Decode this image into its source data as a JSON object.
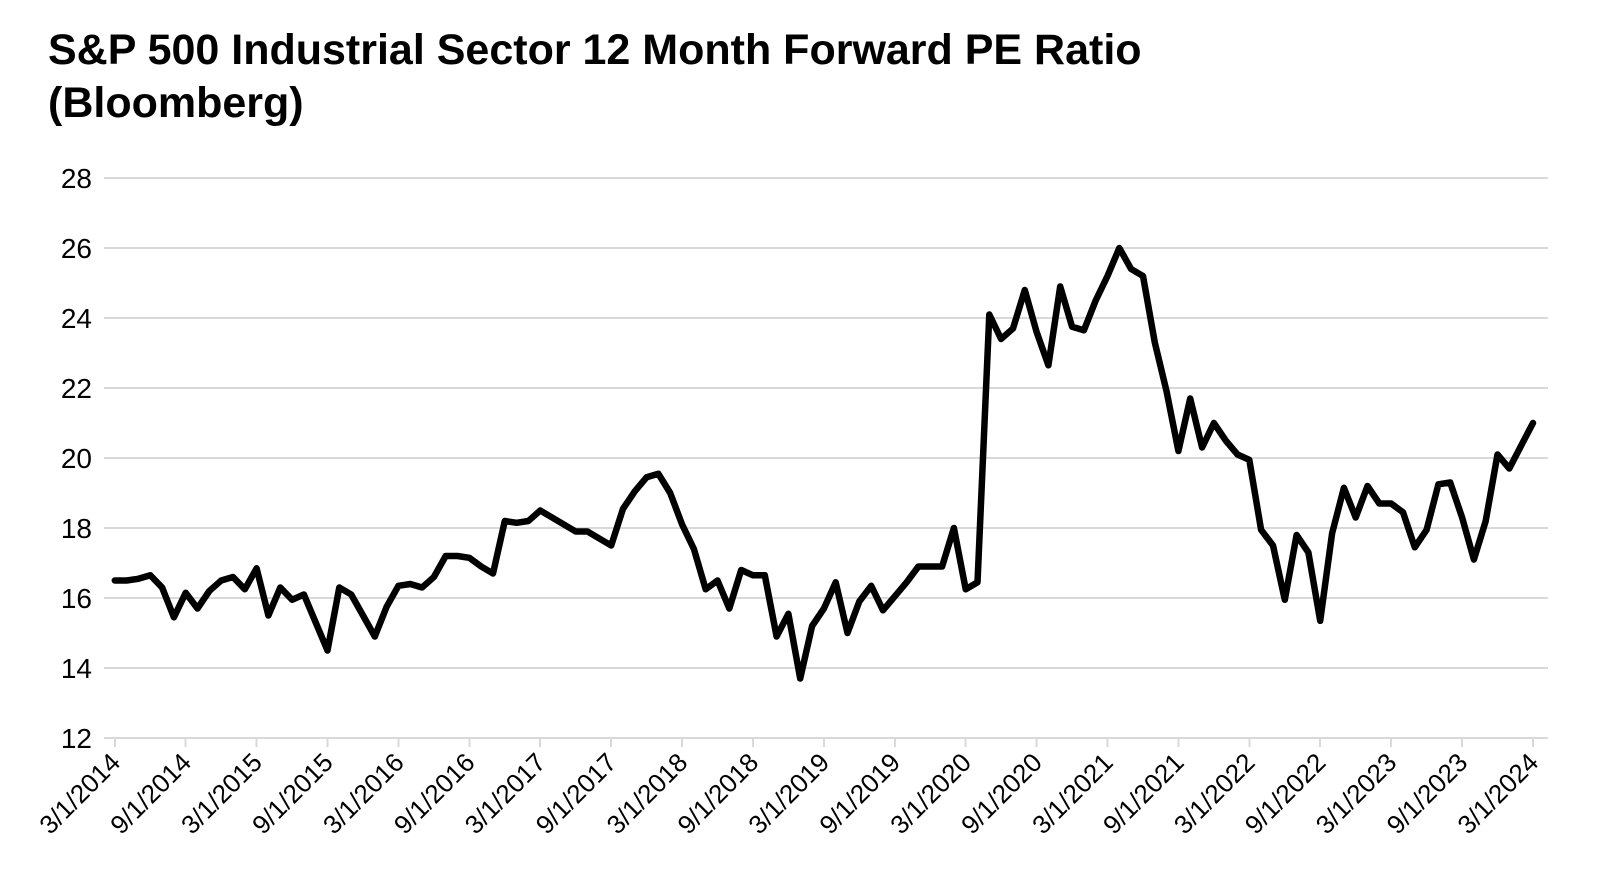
{
  "page": {
    "background": "#ffffff"
  },
  "chart_data": {
    "type": "line",
    "title": "S&P 500 Industrial Sector 12 Month Forward PE Ratio (Bloomberg)",
    "title_lines": {
      "line1": "S&P 500 Industrial Sector 12 Month Forward PE Ratio",
      "line2": "(Bloomberg)"
    },
    "series_name": "12 Month Forward PE Ratio",
    "xlabel": "",
    "ylabel": "",
    "ylim": [
      12,
      28
    ],
    "y_ticks": [
      12,
      14,
      16,
      18,
      20,
      22,
      24,
      26,
      28
    ],
    "grid": "horizontal",
    "legend_position": "none",
    "line_color": "#000000",
    "line_width": 6.5,
    "grid_color": "#d9d9d9",
    "label_color": "#000000",
    "x_tick_labels": [
      "3/1/2014",
      "9/1/2014",
      "3/1/2015",
      "9/1/2015",
      "3/1/2016",
      "9/1/2016",
      "3/1/2017",
      "9/1/2017",
      "3/1/2018",
      "9/1/2018",
      "3/1/2019",
      "9/1/2019",
      "3/1/2020",
      "9/1/2020",
      "3/1/2021",
      "9/1/2021",
      "3/1/2022",
      "9/1/2022",
      "3/1/2023",
      "9/1/2023",
      "3/1/2024"
    ],
    "dates": [
      "3/1/2014",
      "4/1/2014",
      "5/1/2014",
      "6/1/2014",
      "7/1/2014",
      "8/1/2014",
      "9/1/2014",
      "10/1/2014",
      "11/1/2014",
      "12/1/2014",
      "1/1/2015",
      "2/1/2015",
      "3/1/2015",
      "4/1/2015",
      "5/1/2015",
      "6/1/2015",
      "7/1/2015",
      "8/1/2015",
      "9/1/2015",
      "10/1/2015",
      "11/1/2015",
      "12/1/2015",
      "1/1/2016",
      "2/1/2016",
      "3/1/2016",
      "4/1/2016",
      "5/1/2016",
      "6/1/2016",
      "7/1/2016",
      "8/1/2016",
      "9/1/2016",
      "10/1/2016",
      "11/1/2016",
      "12/1/2016",
      "1/1/2017",
      "2/1/2017",
      "3/1/2017",
      "4/1/2017",
      "5/1/2017",
      "6/1/2017",
      "7/1/2017",
      "8/1/2017",
      "9/1/2017",
      "10/1/2017",
      "11/1/2017",
      "12/1/2017",
      "1/1/2018",
      "2/1/2018",
      "3/1/2018",
      "4/1/2018",
      "5/1/2018",
      "6/1/2018",
      "7/1/2018",
      "8/1/2018",
      "9/1/2018",
      "10/1/2018",
      "11/1/2018",
      "12/1/2018",
      "1/1/2019",
      "2/1/2019",
      "3/1/2019",
      "4/1/2019",
      "5/1/2019",
      "6/1/2019",
      "7/1/2019",
      "8/1/2019",
      "9/1/2019",
      "10/1/2019",
      "11/1/2019",
      "12/1/2019",
      "1/1/2020",
      "2/1/2020",
      "3/1/2020",
      "4/1/2020",
      "5/1/2020",
      "6/1/2020",
      "7/1/2020",
      "8/1/2020",
      "9/1/2020",
      "10/1/2020",
      "11/1/2020",
      "12/1/2020",
      "1/1/2021",
      "2/1/2021",
      "3/1/2021",
      "4/1/2021",
      "5/1/2021",
      "6/1/2021",
      "7/1/2021",
      "8/1/2021",
      "9/1/2021",
      "10/1/2021",
      "11/1/2021",
      "12/1/2021",
      "1/1/2022",
      "2/1/2022",
      "3/1/2022",
      "4/1/2022",
      "5/1/2022",
      "6/1/2022",
      "7/1/2022",
      "8/1/2022",
      "9/1/2022",
      "10/1/2022",
      "11/1/2022",
      "12/1/2022",
      "1/1/2023",
      "2/1/2023",
      "3/1/2023",
      "4/1/2023",
      "5/1/2023",
      "6/1/2023",
      "7/1/2023",
      "8/1/2023",
      "9/1/2023",
      "10/1/2023",
      "11/1/2023",
      "12/1/2023",
      "1/1/2024",
      "2/1/2024",
      "3/1/2024"
    ],
    "values": [
      16.5,
      16.5,
      16.55,
      16.65,
      16.3,
      15.45,
      16.15,
      15.7,
      16.2,
      16.5,
      16.6,
      16.25,
      16.85,
      15.5,
      16.3,
      15.95,
      16.1,
      15.3,
      14.5,
      16.3,
      16.1,
      15.5,
      14.9,
      15.75,
      16.35,
      16.4,
      16.3,
      16.6,
      17.2,
      17.2,
      17.15,
      16.9,
      16.7,
      18.2,
      18.15,
      18.2,
      18.5,
      18.3,
      18.1,
      17.9,
      17.9,
      17.7,
      17.5,
      18.55,
      19.05,
      19.45,
      19.55,
      19.0,
      18.1,
      17.4,
      16.25,
      16.5,
      15.7,
      16.8,
      16.65,
      16.65,
      14.9,
      15.55,
      13.7,
      15.2,
      15.7,
      16.45,
      15.0,
      15.9,
      16.35,
      15.65,
      16.05,
      16.45,
      16.9,
      16.9,
      16.9,
      18.0,
      16.25,
      16.45,
      24.1,
      23.4,
      23.7,
      24.8,
      23.6,
      22.65,
      24.9,
      23.75,
      23.65,
      24.5,
      25.2,
      26.0,
      25.4,
      25.2,
      23.3,
      21.9,
      20.2,
      21.7,
      20.3,
      21.0,
      20.5,
      20.1,
      19.95,
      17.95,
      17.5,
      15.95,
      17.8,
      17.3,
      15.35,
      17.85,
      19.15,
      18.3,
      19.2,
      18.7,
      18.7,
      18.45,
      17.45,
      17.95,
      19.25,
      19.3,
      18.3,
      17.1,
      18.2,
      20.1,
      19.7,
      20.35,
      21.0
    ]
  }
}
